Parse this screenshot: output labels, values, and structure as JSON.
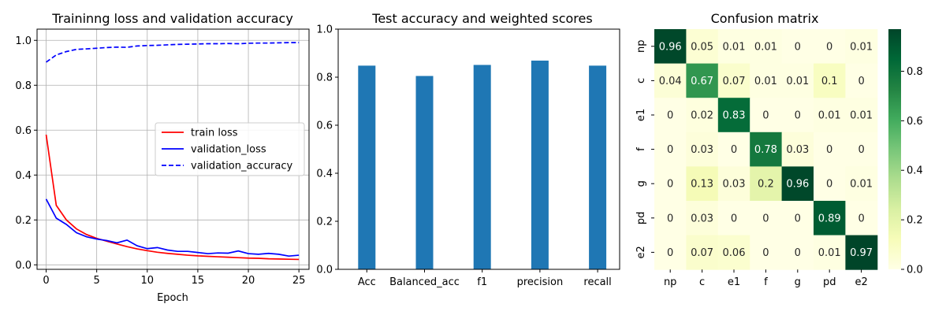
{
  "chart_data": [
    {
      "type": "line",
      "title": "Traininng loss and validation accuracy",
      "xlabel": "Epoch",
      "ylabel": "",
      "xlim": [
        -0.9,
        26
      ],
      "ylim": [
        -0.02,
        1.05
      ],
      "xticks": [
        0,
        5,
        10,
        15,
        20,
        25
      ],
      "yticks": [
        0.0,
        0.2,
        0.4,
        0.6,
        0.8,
        1.0
      ],
      "grid": true,
      "legend_placement": "center-right",
      "x": [
        0,
        1,
        2,
        3,
        4,
        5,
        6,
        7,
        8,
        9,
        10,
        11,
        12,
        13,
        14,
        15,
        16,
        17,
        18,
        19,
        20,
        21,
        22,
        23,
        24,
        25
      ],
      "series": [
        {
          "name": "train loss",
          "color": "#ff0000",
          "style": "solid",
          "values": [
            0.58,
            0.265,
            0.2,
            0.16,
            0.135,
            0.118,
            0.105,
            0.093,
            0.081,
            0.071,
            0.063,
            0.056,
            0.051,
            0.047,
            0.043,
            0.04,
            0.038,
            0.036,
            0.034,
            0.032,
            0.03,
            0.029,
            0.027,
            0.026,
            0.025,
            0.024
          ]
        },
        {
          "name": "validation_loss",
          "color": "#0000ff",
          "style": "solid",
          "values": [
            0.293,
            0.208,
            0.18,
            0.143,
            0.125,
            0.115,
            0.108,
            0.098,
            0.11,
            0.085,
            0.072,
            0.077,
            0.066,
            0.06,
            0.06,
            0.055,
            0.05,
            0.053,
            0.052,
            0.062,
            0.05,
            0.047,
            0.051,
            0.047,
            0.039,
            0.043
          ]
        },
        {
          "name": "validation_accuracy",
          "color": "#0000ff",
          "style": "dashed",
          "values": [
            0.903,
            0.935,
            0.95,
            0.96,
            0.962,
            0.965,
            0.968,
            0.97,
            0.969,
            0.975,
            0.977,
            0.978,
            0.98,
            0.982,
            0.983,
            0.984,
            0.985,
            0.985,
            0.986,
            0.985,
            0.987,
            0.988,
            0.988,
            0.989,
            0.99,
            0.99
          ]
        }
      ]
    },
    {
      "type": "bar",
      "title": "Test accuracy and weighted scores",
      "xlabel": "",
      "ylabel": "",
      "ylim": [
        0,
        1.0
      ],
      "yticks": [
        0.0,
        0.2,
        0.4,
        0.6,
        0.8,
        1.0
      ],
      "grid": false,
      "color": "#1f77b4",
      "categories": [
        "Acc",
        "Balanced_acc",
        "f1",
        "precision",
        "recall"
      ],
      "values": [
        0.848,
        0.805,
        0.851,
        0.869,
        0.848
      ]
    },
    {
      "type": "heatmap",
      "title": "Confusion matrix",
      "row_labels": [
        "np",
        "c",
        "e1",
        "f",
        "g",
        "pd",
        "e2"
      ],
      "col_labels": [
        "np",
        "c",
        "e1",
        "f",
        "g",
        "pd",
        "e2"
      ],
      "values": [
        [
          0.96,
          0.05,
          0.01,
          0.01,
          0,
          0,
          0.01
        ],
        [
          0.04,
          0.67,
          0.07,
          0.01,
          0.01,
          0.1,
          0
        ],
        [
          0,
          0.02,
          0.83,
          0,
          0,
          0.01,
          0.01
        ],
        [
          0,
          0.03,
          0,
          0.78,
          0.03,
          0,
          0
        ],
        [
          0,
          0.13,
          0.03,
          0.2,
          0.96,
          0,
          0.01
        ],
        [
          0,
          0.03,
          0,
          0,
          0,
          0.89,
          0
        ],
        [
          0,
          0.07,
          0.06,
          0,
          0,
          0.01,
          0.97
        ]
      ],
      "colormap": "YlGn",
      "colorbar_range": [
        0,
        0.97
      ],
      "colorbar_ticks": [
        0.0,
        0.2,
        0.4,
        0.6,
        0.8
      ]
    }
  ]
}
